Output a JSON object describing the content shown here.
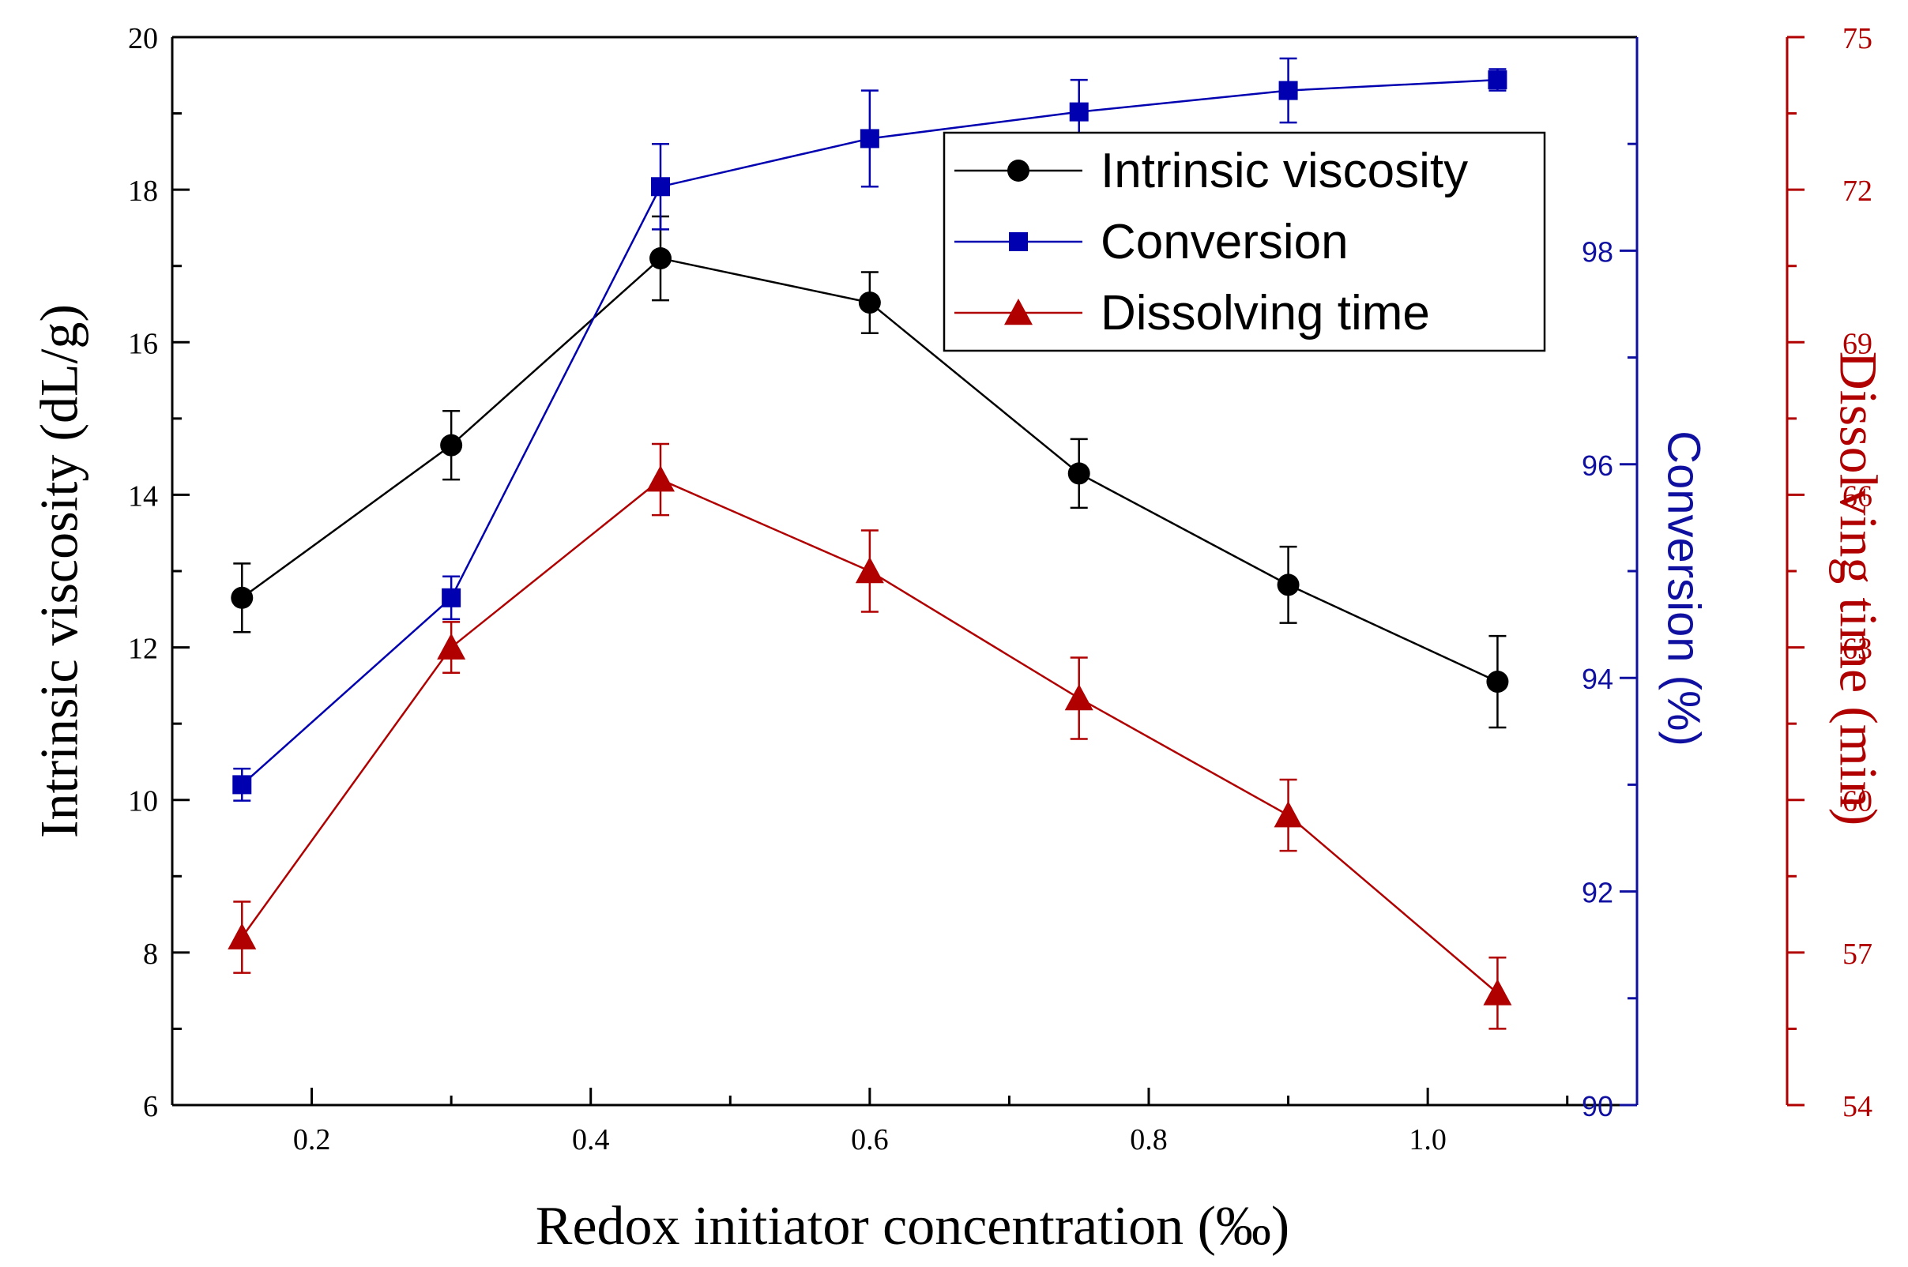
{
  "chart_data": {
    "type": "line",
    "xlabel": "Redox initiator concentration (‰)",
    "x": [
      0.15,
      0.3,
      0.45,
      0.6,
      0.75,
      0.9,
      1.05
    ],
    "xlim": [
      0.1,
      1.15
    ],
    "x_ticks": [
      0.2,
      0.4,
      0.6,
      0.8,
      1.0
    ],
    "x_tick_labels": [
      "0.2",
      "0.4",
      "0.6",
      "0.8",
      "1.0"
    ],
    "axes": {
      "left": {
        "label": "Intrinsic viscosity (dL/g)",
        "ylim": [
          6,
          20
        ],
        "ticks": [
          6,
          8,
          10,
          12,
          14,
          16,
          18,
          20
        ],
        "tick_labels": [
          "6",
          "8",
          "10",
          "12",
          "14",
          "16",
          "18",
          "20"
        ],
        "color": "#000000"
      },
      "right1": {
        "label": "Conversion (%)",
        "ylim": [
          90,
          100
        ],
        "ticks": [
          90,
          92,
          94,
          96,
          98
        ],
        "tick_labels": [
          "90",
          "92",
          "94",
          "96",
          "98"
        ],
        "color": "#1010a0"
      },
      "right2": {
        "label": "Dissolving time (min)",
        "ylim": [
          54,
          75
        ],
        "ticks": [
          54,
          57,
          60,
          63,
          66,
          69,
          72,
          75
        ],
        "tick_labels": [
          "54",
          "57",
          "60",
          "63",
          "66",
          "69",
          "72",
          "75"
        ],
        "color": "#b00000"
      }
    },
    "series": [
      {
        "name": "Intrinsic viscosity",
        "axis": "left",
        "marker": "circle",
        "color": "#000000",
        "values": [
          12.65,
          14.65,
          17.1,
          16.52,
          14.28,
          12.82,
          11.55
        ],
        "errors": [
          0.45,
          0.45,
          0.55,
          0.4,
          0.45,
          0.5,
          0.6
        ]
      },
      {
        "name": "Conversion",
        "axis": "right1",
        "marker": "square",
        "color": "#0000b0",
        "values": [
          93.0,
          94.75,
          98.6,
          99.05,
          99.3,
          99.5,
          99.6
        ],
        "errors": [
          0.15,
          0.2,
          0.4,
          0.45,
          0.3,
          0.3,
          0.1
        ]
      },
      {
        "name": "Dissolving time",
        "axis": "right2",
        "marker": "triangle",
        "color": "#b00000",
        "values": [
          57.3,
          63.0,
          66.3,
          64.5,
          62.0,
          59.7,
          56.2
        ],
        "errors": [
          0.7,
          0.5,
          0.7,
          0.8,
          0.8,
          0.7,
          0.7
        ]
      }
    ]
  }
}
